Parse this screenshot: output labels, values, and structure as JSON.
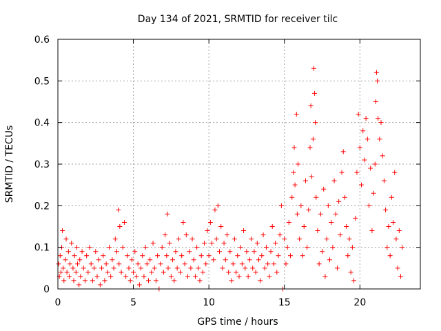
{
  "chart_data": {
    "type": "scatter",
    "title": "Day 134 of 2021, SRMTID for receiver tilc",
    "xlabel": "GPS time / hours",
    "ylabel": "SRMTID / TECUs",
    "xlim": [
      0,
      24
    ],
    "ylim": [
      0,
      0.6
    ],
    "xticks": [
      0,
      5,
      10,
      15,
      20
    ],
    "yticks": [
      0,
      0.1,
      0.2,
      0.3,
      0.4,
      0.5,
      0.6
    ],
    "xtick_labels": [
      "0",
      "5",
      "10",
      "15",
      "20"
    ],
    "ytick_labels": [
      "0",
      "0.1",
      "0.2",
      "0.3",
      "0.4",
      "0.5",
      "0.6"
    ],
    "grid": true,
    "marker": "+",
    "color": "#ff0000",
    "series": [
      {
        "name": "SRMTID",
        "points": [
          [
            0.05,
            0.06
          ],
          [
            0.1,
            0.03
          ],
          [
            0.15,
            0.08
          ],
          [
            0.2,
            0.04
          ],
          [
            0.25,
            0.1
          ],
          [
            0.3,
            0.14
          ],
          [
            0.35,
            0.05
          ],
          [
            0.4,
            0.02
          ],
          [
            0.5,
            0.07
          ],
          [
            0.55,
            0.12
          ],
          [
            0.6,
            0.04
          ],
          [
            0.7,
            0.09
          ],
          [
            0.75,
            0.03
          ],
          [
            0.8,
            0.06
          ],
          [
            0.9,
            0.11
          ],
          [
            1.0,
            0.05
          ],
          [
            1.05,
            0.02
          ],
          [
            1.1,
            0.08
          ],
          [
            1.2,
            0.04
          ],
          [
            1.25,
            0.1
          ],
          [
            1.3,
            0.06
          ],
          [
            1.4,
            0.01
          ],
          [
            1.45,
            0.07
          ],
          [
            1.5,
            0.03
          ],
          [
            1.6,
            0.09
          ],
          [
            1.7,
            0.05
          ],
          [
            1.8,
            0.02
          ],
          [
            1.9,
            0.08
          ],
          [
            2.0,
            0.04
          ],
          [
            2.1,
            0.1
          ],
          [
            2.2,
            0.06
          ],
          [
            2.3,
            0.02
          ],
          [
            2.4,
            0.05
          ],
          [
            2.5,
            0.09
          ],
          [
            2.6,
            0.03
          ],
          [
            2.7,
            0.07
          ],
          [
            2.8,
            0.01
          ],
          [
            2.9,
            0.05
          ],
          [
            3.0,
            0.08
          ],
          [
            3.1,
            0.02
          ],
          [
            3.2,
            0.06
          ],
          [
            3.3,
            0.04
          ],
          [
            3.4,
            0.1
          ],
          [
            3.5,
            0.03
          ],
          [
            3.6,
            0.07
          ],
          [
            3.7,
            0.05
          ],
          [
            3.8,
            0.12
          ],
          [
            3.9,
            0.09
          ],
          [
            4.0,
            0.19
          ],
          [
            4.05,
            0.06
          ],
          [
            4.1,
            0.15
          ],
          [
            4.2,
            0.04
          ],
          [
            4.3,
            0.1
          ],
          [
            4.4,
            0.16
          ],
          [
            4.5,
            0.03
          ],
          [
            4.6,
            0.08
          ],
          [
            4.7,
            0.05
          ],
          [
            4.8,
            0.02
          ],
          [
            4.9,
            0.07
          ],
          [
            5.0,
            0.04
          ],
          [
            5.1,
            0.09
          ],
          [
            5.2,
            0.03
          ],
          [
            5.3,
            0.06
          ],
          [
            5.4,
            0.01
          ],
          [
            5.5,
            0.05
          ],
          [
            5.6,
            0.08
          ],
          [
            5.7,
            0.03
          ],
          [
            5.8,
            0.1
          ],
          [
            5.9,
            0.06
          ],
          [
            6.0,
            0.02
          ],
          [
            6.1,
            0.07
          ],
          [
            6.2,
            0.04
          ],
          [
            6.3,
            0.11
          ],
          [
            6.4,
            0.05
          ],
          [
            6.5,
            0.02
          ],
          [
            6.6,
            0.08
          ],
          [
            6.7,
            0.0
          ],
          [
            6.8,
            0.06
          ],
          [
            6.9,
            0.1
          ],
          [
            7.0,
            0.04
          ],
          [
            7.1,
            0.13
          ],
          [
            7.2,
            0.08
          ],
          [
            7.25,
            0.18
          ],
          [
            7.3,
            0.05
          ],
          [
            7.4,
            0.11
          ],
          [
            7.5,
            0.03
          ],
          [
            7.6,
            0.07
          ],
          [
            7.7,
            0.02
          ],
          [
            7.8,
            0.09
          ],
          [
            7.9,
            0.05
          ],
          [
            8.0,
            0.12
          ],
          [
            8.1,
            0.04
          ],
          [
            8.2,
            0.08
          ],
          [
            8.3,
            0.16
          ],
          [
            8.4,
            0.06
          ],
          [
            8.5,
            0.13
          ],
          [
            8.6,
            0.03
          ],
          [
            8.7,
            0.09
          ],
          [
            8.8,
            0.05
          ],
          [
            8.9,
            0.12
          ],
          [
            9.0,
            0.07
          ],
          [
            9.1,
            0.03
          ],
          [
            9.2,
            0.1
          ],
          [
            9.3,
            0.05
          ],
          [
            9.4,
            0.02
          ],
          [
            9.5,
            0.08
          ],
          [
            9.6,
            0.04
          ],
          [
            9.7,
            0.11
          ],
          [
            9.8,
            0.06
          ],
          [
            9.9,
            0.14
          ],
          [
            10.0,
            0.08
          ],
          [
            10.1,
            0.16
          ],
          [
            10.2,
            0.11
          ],
          [
            10.3,
            0.07
          ],
          [
            10.4,
            0.19
          ],
          [
            10.5,
            0.12
          ],
          [
            10.6,
            0.2
          ],
          [
            10.7,
            0.09
          ],
          [
            10.8,
            0.15
          ],
          [
            10.9,
            0.05
          ],
          [
            11.0,
            0.11
          ],
          [
            11.1,
            0.07
          ],
          [
            11.2,
            0.13
          ],
          [
            11.3,
            0.04
          ],
          [
            11.4,
            0.09
          ],
          [
            11.5,
            0.02
          ],
          [
            11.6,
            0.06
          ],
          [
            11.7,
            0.12
          ],
          [
            11.8,
            0.04
          ],
          [
            11.9,
            0.08
          ],
          [
            12.0,
            0.03
          ],
          [
            12.1,
            0.1
          ],
          [
            12.2,
            0.06
          ],
          [
            12.3,
            0.14
          ],
          [
            12.4,
            0.05
          ],
          [
            12.5,
            0.09
          ],
          [
            12.6,
            0.03
          ],
          [
            12.7,
            0.07
          ],
          [
            12.8,
            0.12
          ],
          [
            12.9,
            0.05
          ],
          [
            13.0,
            0.09
          ],
          [
            13.1,
            0.04
          ],
          [
            13.2,
            0.11
          ],
          [
            13.3,
            0.07
          ],
          [
            13.4,
            0.02
          ],
          [
            13.5,
            0.08
          ],
          [
            13.6,
            0.13
          ],
          [
            13.7,
            0.05
          ],
          [
            13.8,
            0.1
          ],
          [
            13.9,
            0.06
          ],
          [
            14.0,
            0.03
          ],
          [
            14.1,
            0.09
          ],
          [
            14.2,
            0.15
          ],
          [
            14.3,
            0.06
          ],
          [
            14.4,
            0.11
          ],
          [
            14.5,
            0.04
          ],
          [
            14.6,
            0.08
          ],
          [
            14.7,
            0.13
          ],
          [
            14.8,
            0.2
          ],
          [
            14.9,
            0.0
          ],
          [
            15.0,
            0.12
          ],
          [
            15.1,
            0.06
          ],
          [
            15.2,
            0.1
          ],
          [
            15.3,
            0.16
          ],
          [
            15.4,
            0.08
          ],
          [
            15.5,
            0.22
          ],
          [
            15.6,
            0.28
          ],
          [
            15.65,
            0.34
          ],
          [
            15.7,
            0.25
          ],
          [
            15.8,
            0.42
          ],
          [
            15.85,
            0.18
          ],
          [
            15.9,
            0.3
          ],
          [
            16.0,
            0.12
          ],
          [
            16.1,
            0.2
          ],
          [
            16.2,
            0.08
          ],
          [
            16.3,
            0.15
          ],
          [
            16.4,
            0.26
          ],
          [
            16.5,
            0.1
          ],
          [
            16.6,
            0.19
          ],
          [
            16.7,
            0.34
          ],
          [
            16.75,
            0.44
          ],
          [
            16.8,
            0.27
          ],
          [
            16.9,
            0.36
          ],
          [
            16.95,
            0.53
          ],
          [
            17.0,
            0.47
          ],
          [
            17.05,
            0.4
          ],
          [
            17.1,
            0.22
          ],
          [
            17.2,
            0.14
          ],
          [
            17.3,
            0.06
          ],
          [
            17.4,
            0.18
          ],
          [
            17.5,
            0.09
          ],
          [
            17.6,
            0.24
          ],
          [
            17.7,
            0.03
          ],
          [
            17.8,
            0.12
          ],
          [
            17.9,
            0.2
          ],
          [
            18.0,
            0.07
          ],
          [
            18.1,
            0.16
          ],
          [
            18.2,
            0.1
          ],
          [
            18.3,
            0.26
          ],
          [
            18.4,
            0.18
          ],
          [
            18.5,
            0.05
          ],
          [
            18.6,
            0.21
          ],
          [
            18.7,
            0.13
          ],
          [
            18.8,
            0.28
          ],
          [
            18.9,
            0.33
          ],
          [
            19.0,
            0.22
          ],
          [
            19.1,
            0.15
          ],
          [
            19.2,
            0.08
          ],
          [
            19.3,
            0.12
          ],
          [
            19.4,
            0.04
          ],
          [
            19.5,
            0.1
          ],
          [
            19.6,
            0.02
          ],
          [
            19.7,
            0.17
          ],
          [
            19.8,
            0.28
          ],
          [
            19.9,
            0.42
          ],
          [
            20.0,
            0.34
          ],
          [
            20.1,
            0.25
          ],
          [
            20.2,
            0.38
          ],
          [
            20.3,
            0.31
          ],
          [
            20.4,
            0.41
          ],
          [
            20.5,
            0.36
          ],
          [
            20.6,
            0.2
          ],
          [
            20.7,
            0.29
          ],
          [
            20.8,
            0.14
          ],
          [
            20.9,
            0.23
          ],
          [
            21.0,
            0.3
          ],
          [
            21.05,
            0.45
          ],
          [
            21.1,
            0.52
          ],
          [
            21.15,
            0.5
          ],
          [
            21.2,
            0.41
          ],
          [
            21.3,
            0.36
          ],
          [
            21.4,
            0.4
          ],
          [
            21.5,
            0.32
          ],
          [
            21.6,
            0.26
          ],
          [
            21.7,
            0.19
          ],
          [
            21.8,
            0.1
          ],
          [
            21.9,
            0.15
          ],
          [
            22.0,
            0.08
          ],
          [
            22.1,
            0.22
          ],
          [
            22.2,
            0.16
          ],
          [
            22.3,
            0.28
          ],
          [
            22.4,
            0.12
          ],
          [
            22.5,
            0.05
          ],
          [
            22.6,
            0.14
          ],
          [
            22.7,
            0.03
          ],
          [
            22.8,
            0.1
          ]
        ]
      }
    ]
  }
}
